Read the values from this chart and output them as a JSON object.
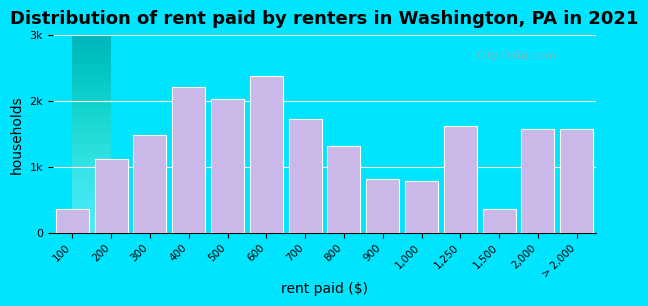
{
  "title": "Distribution of rent paid by renters in Washington, PA in 2021",
  "xlabel": "rent paid ($)",
  "ylabel": "households",
  "bar_labels": [
    "100",
    "200",
    "300",
    "400",
    "500",
    "600",
    "700",
    "800",
    "900",
    "1,000",
    "1,250",
    "1,500",
    "2,000",
    "> 2,000"
  ],
  "bar_values": [
    370,
    1120,
    1480,
    2220,
    2030,
    2380,
    1730,
    1320,
    820,
    790,
    1620,
    370,
    1580,
    1580
  ],
  "bar_color": "#c9b8e8",
  "bar_edgecolor": "#ffffff",
  "background_outer": "#00e5ff",
  "background_inner_top": "#e8f5e9",
  "background_inner_bottom": "#f0f4ff",
  "ytick_labels": [
    "0",
    "1k",
    "2k",
    "3k"
  ],
  "ytick_values": [
    0,
    1000,
    2000,
    3000
  ],
  "ylim": [
    0,
    3000
  ],
  "title_fontsize": 13,
  "axis_label_fontsize": 10,
  "watermark_text": "City-Data.com"
}
